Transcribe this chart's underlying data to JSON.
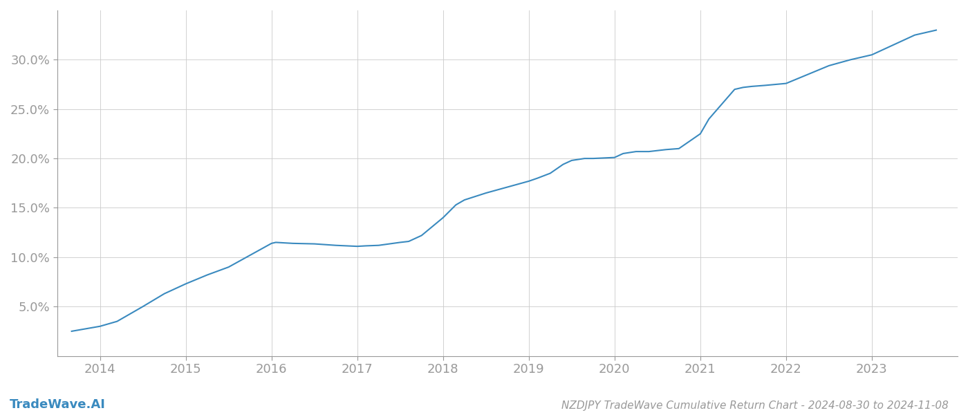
{
  "x_values": [
    2013.67,
    2014.0,
    2014.2,
    2014.5,
    2014.75,
    2015.0,
    2015.25,
    2015.5,
    2015.75,
    2016.0,
    2016.05,
    2016.25,
    2016.5,
    2016.75,
    2017.0,
    2017.1,
    2017.25,
    2017.5,
    2017.6,
    2017.75,
    2018.0,
    2018.15,
    2018.25,
    2018.5,
    2018.75,
    2019.0,
    2019.1,
    2019.25,
    2019.4,
    2019.5,
    2019.65,
    2019.75,
    2020.0,
    2020.1,
    2020.25,
    2020.4,
    2020.5,
    2020.6,
    2020.75,
    2021.0,
    2021.1,
    2021.25,
    2021.4,
    2021.5,
    2021.6,
    2021.75,
    2022.0,
    2022.25,
    2022.5,
    2022.75,
    2023.0,
    2023.25,
    2023.5,
    2023.75
  ],
  "y_values": [
    2.5,
    3.0,
    3.5,
    5.0,
    6.3,
    7.3,
    8.2,
    9.0,
    10.2,
    11.4,
    11.5,
    11.4,
    11.35,
    11.2,
    11.1,
    11.15,
    11.2,
    11.5,
    11.6,
    12.2,
    14.0,
    15.3,
    15.8,
    16.5,
    17.1,
    17.7,
    18.0,
    18.5,
    19.4,
    19.8,
    20.0,
    20.0,
    20.1,
    20.5,
    20.7,
    20.7,
    20.8,
    20.9,
    21.0,
    22.5,
    24.0,
    25.5,
    27.0,
    27.2,
    27.3,
    27.4,
    27.6,
    28.5,
    29.4,
    30.0,
    30.5,
    31.5,
    32.5,
    33.0
  ],
  "line_color": "#3a8abf",
  "line_width": 1.5,
  "background_color": "#ffffff",
  "grid_color": "#cccccc",
  "axis_color": "#999999",
  "tick_color": "#999999",
  "title": "NZDJPY TradeWave Cumulative Return Chart - 2024-08-30 to 2024-11-08",
  "watermark": "TradeWave.AI",
  "xlim": [
    2013.5,
    2024.0
  ],
  "ylim_bottom": 0.0,
  "ylim_top": 35.0,
  "xticks": [
    2014,
    2015,
    2016,
    2017,
    2018,
    2019,
    2020,
    2021,
    2022,
    2023
  ],
  "yticks": [
    5.0,
    10.0,
    15.0,
    20.0,
    25.0,
    30.0
  ],
  "title_fontsize": 11,
  "tick_fontsize": 13,
  "watermark_fontsize": 13
}
